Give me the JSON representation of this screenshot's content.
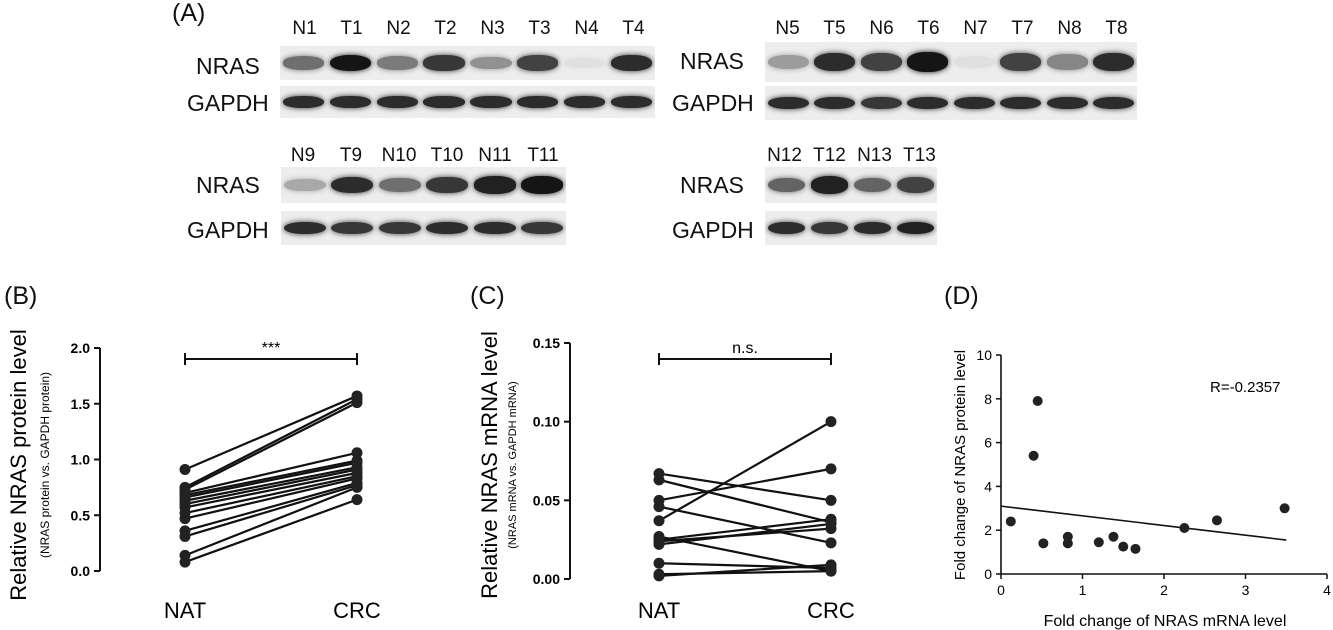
{
  "panel_labels": [
    "(A)",
    "(B)",
    "(C)",
    "(D)"
  ],
  "blots": [
    {
      "lanes": [
        "N1",
        "T1",
        "N2",
        "T2",
        "N3",
        "T3",
        "N4",
        "T4"
      ],
      "rows": [
        "NRAS",
        "GAPDH"
      ],
      "nras_intensity": [
        0.55,
        0.95,
        0.5,
        0.8,
        0.4,
        0.75,
        0.05,
        0.85
      ],
      "gapdh_intensity": [
        0.85,
        0.85,
        0.85,
        0.85,
        0.85,
        0.85,
        0.85,
        0.85
      ]
    },
    {
      "lanes": [
        "N5",
        "T5",
        "N6",
        "T6",
        "N7",
        "T7",
        "N8",
        "T8"
      ],
      "rows": [
        "NRAS",
        "GAPDH"
      ],
      "nras_intensity": [
        0.35,
        0.85,
        0.75,
        0.95,
        0.05,
        0.75,
        0.45,
        0.85
      ],
      "gapdh_intensity": [
        0.85,
        0.85,
        0.8,
        0.85,
        0.85,
        0.85,
        0.85,
        0.85
      ]
    },
    {
      "lanes": [
        "N9",
        "T9",
        "N10",
        "T10",
        "N11",
        "T11"
      ],
      "rows": [
        "NRAS",
        "GAPDH"
      ],
      "nras_intensity": [
        0.3,
        0.85,
        0.55,
        0.8,
        0.9,
        0.95
      ],
      "gapdh_intensity": [
        0.85,
        0.8,
        0.8,
        0.85,
        0.85,
        0.8
      ]
    },
    {
      "lanes": [
        "N12",
        "T12",
        "N13",
        "T13"
      ],
      "rows": [
        "NRAS",
        "GAPDH"
      ],
      "nras_intensity": [
        0.6,
        0.9,
        0.6,
        0.75
      ],
      "gapdh_intensity": [
        0.85,
        0.8,
        0.85,
        0.9
      ]
    }
  ],
  "chart_data": [
    {
      "type": "line",
      "panel": "(B)",
      "ylabel": "Relative NRAS protein level",
      "ylabel_sub": "(NRAS protein vs. GAPDH protein)",
      "categories": [
        "NAT",
        "CRC"
      ],
      "ylim": [
        0,
        2.0
      ],
      "yticks": [
        "0.0",
        "0.5",
        "1.0",
        "1.5",
        "2.0"
      ],
      "significance": "***",
      "pairs": [
        [
          0.91,
          1.57
        ],
        [
          0.75,
          1.54
        ],
        [
          0.73,
          1.51
        ],
        [
          0.7,
          1.06
        ],
        [
          0.68,
          0.99
        ],
        [
          0.66,
          0.97
        ],
        [
          0.63,
          0.93
        ],
        [
          0.6,
          0.91
        ],
        [
          0.57,
          0.88
        ],
        [
          0.52,
          0.85
        ],
        [
          0.47,
          0.83
        ],
        [
          0.36,
          0.79
        ],
        [
          0.31,
          0.77
        ],
        [
          0.14,
          0.75
        ],
        [
          0.08,
          0.64
        ]
      ]
    },
    {
      "type": "line",
      "panel": "(C)",
      "ylabel": "Relative NRAS mRNA level",
      "ylabel_sub": "(NRAS mRNA vs. GAPDH mRNA)",
      "categories": [
        "NAT",
        "CRC"
      ],
      "ylim": [
        0,
        0.15
      ],
      "yticks": [
        "0.00",
        "0.05",
        "0.10",
        "0.15"
      ],
      "significance": "n.s.",
      "pairs": [
        [
          0.067,
          0.05
        ],
        [
          0.063,
          0.036
        ],
        [
          0.05,
          0.07
        ],
        [
          0.046,
          0.023
        ],
        [
          0.037,
          0.1
        ],
        [
          0.027,
          0.005
        ],
        [
          0.025,
          0.038
        ],
        [
          0.024,
          0.032
        ],
        [
          0.022,
          0.035
        ],
        [
          0.01,
          0.007
        ],
        [
          0.003,
          0.005
        ],
        [
          0.002,
          0.009
        ]
      ]
    },
    {
      "type": "scatter",
      "panel": "(D)",
      "xlabel": "Fold change of NRAS mRNA level",
      "ylabel": "Fold change of NRAS protein level",
      "xlim": [
        0,
        4
      ],
      "ylim": [
        0,
        10
      ],
      "xticks": [
        "0",
        "1",
        "2",
        "3",
        "4"
      ],
      "yticks": [
        "0",
        "2",
        "4",
        "6",
        "8",
        "10"
      ],
      "annotation": "R=-0.2357",
      "points": [
        [
          0.12,
          2.4
        ],
        [
          0.4,
          5.4
        ],
        [
          0.45,
          7.9
        ],
        [
          0.52,
          1.4
        ],
        [
          0.82,
          1.7
        ],
        [
          0.82,
          1.4
        ],
        [
          1.2,
          1.45
        ],
        [
          1.38,
          1.7
        ],
        [
          1.5,
          1.25
        ],
        [
          1.65,
          1.15
        ],
        [
          2.25,
          2.1
        ],
        [
          2.65,
          2.45
        ],
        [
          3.48,
          3.0
        ]
      ],
      "regression": [
        [
          0,
          3.1
        ],
        [
          3.5,
          1.55
        ]
      ]
    }
  ]
}
